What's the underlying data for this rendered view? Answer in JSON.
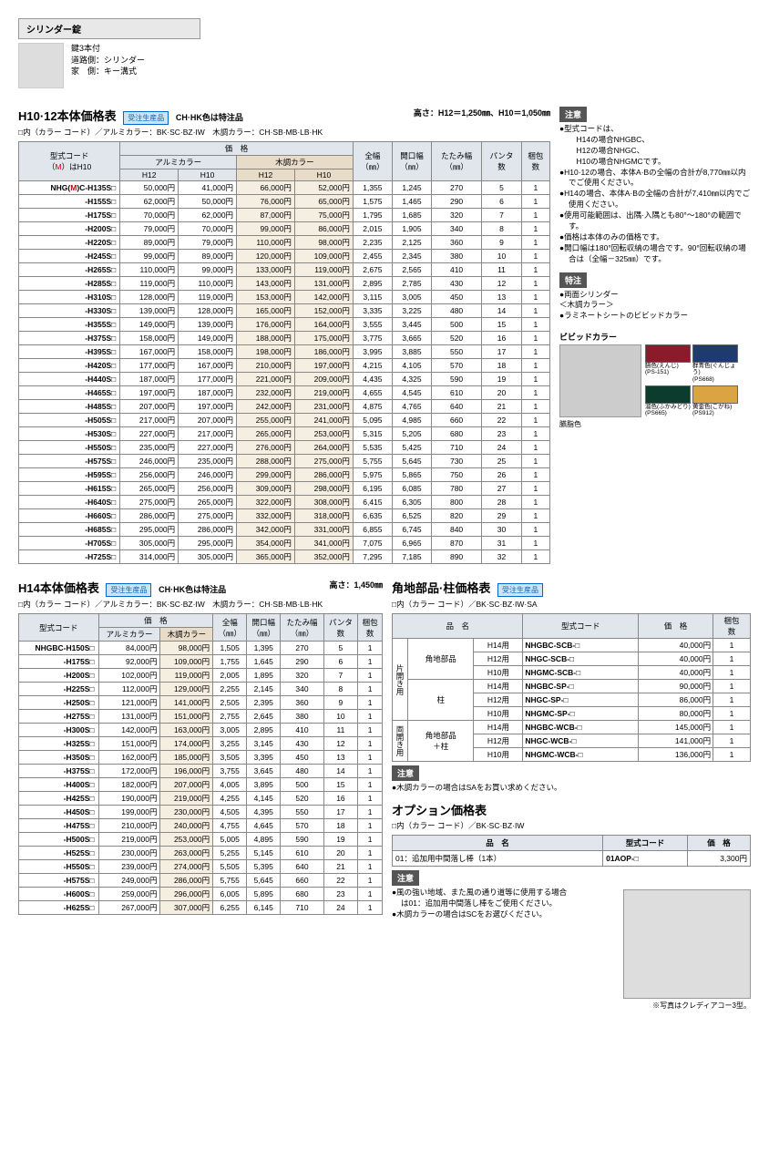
{
  "lock": {
    "header": "シリンダー錠",
    "lines": [
      "鍵3本付",
      "道路側：シリンダー",
      "家　側：キー溝式"
    ]
  },
  "table1": {
    "title": "H10·12本体価格表",
    "order_badge": "受注生産品",
    "subtitle": "CH·HK色は特注品",
    "height": "高さ：H12＝1,250㎜、H10＝1,050㎜",
    "colorcodes": "□内（カラー コード）／アルミカラー：BK·SC·BZ·IW　木調カラー：CH·SB·MB·LB·HK",
    "code_header": "型式コード\n（M）はH10",
    "headers": {
      "price": "価　格",
      "alum": "アルミカラー",
      "wood": "木調カラー",
      "fullw": "全幅\n（㎜）",
      "openw": "開口幅\n（㎜）",
      "foldw": "たたみ幅\n（㎜）",
      "panta": "パンタ\n数",
      "pkg": "梱包\n数",
      "h12": "H12",
      "h10": "H10"
    },
    "rows": [
      {
        "code": "NHG(M)C-H135S□",
        "p": [
          "50,000円",
          "41,000円",
          "66,000円",
          "52,000円"
        ],
        "v": [
          "1,355",
          "1,245",
          "270",
          "5",
          "1"
        ]
      },
      {
        "code": "-H155S□",
        "p": [
          "62,000円",
          "50,000円",
          "76,000円",
          "65,000円"
        ],
        "v": [
          "1,575",
          "1,465",
          "290",
          "6",
          "1"
        ]
      },
      {
        "code": "-H175S□",
        "p": [
          "70,000円",
          "62,000円",
          "87,000円",
          "75,000円"
        ],
        "v": [
          "1,795",
          "1,685",
          "320",
          "7",
          "1"
        ]
      },
      {
        "code": "-H200S□",
        "p": [
          "79,000円",
          "70,000円",
          "99,000円",
          "86,000円"
        ],
        "v": [
          "2,015",
          "1,905",
          "340",
          "8",
          "1"
        ]
      },
      {
        "code": "-H220S□",
        "p": [
          "89,000円",
          "79,000円",
          "110,000円",
          "98,000円"
        ],
        "v": [
          "2,235",
          "2,125",
          "360",
          "9",
          "1"
        ]
      },
      {
        "code": "-H245S□",
        "p": [
          "99,000円",
          "89,000円",
          "120,000円",
          "109,000円"
        ],
        "v": [
          "2,455",
          "2,345",
          "380",
          "10",
          "1"
        ]
      },
      {
        "code": "-H265S□",
        "p": [
          "110,000円",
          "99,000円",
          "133,000円",
          "119,000円"
        ],
        "v": [
          "2,675",
          "2,565",
          "410",
          "11",
          "1"
        ]
      },
      {
        "code": "-H285S□",
        "p": [
          "119,000円",
          "110,000円",
          "143,000円",
          "131,000円"
        ],
        "v": [
          "2,895",
          "2,785",
          "430",
          "12",
          "1"
        ]
      },
      {
        "code": "-H310S□",
        "p": [
          "128,000円",
          "119,000円",
          "153,000円",
          "142,000円"
        ],
        "v": [
          "3,115",
          "3,005",
          "450",
          "13",
          "1"
        ]
      },
      {
        "code": "-H330S□",
        "p": [
          "139,000円",
          "128,000円",
          "165,000円",
          "152,000円"
        ],
        "v": [
          "3,335",
          "3,225",
          "480",
          "14",
          "1"
        ]
      },
      {
        "code": "-H355S□",
        "p": [
          "149,000円",
          "139,000円",
          "176,000円",
          "164,000円"
        ],
        "v": [
          "3,555",
          "3,445",
          "500",
          "15",
          "1"
        ]
      },
      {
        "code": "-H375S□",
        "p": [
          "158,000円",
          "149,000円",
          "188,000円",
          "175,000円"
        ],
        "v": [
          "3,775",
          "3,665",
          "520",
          "16",
          "1"
        ]
      },
      {
        "code": "-H395S□",
        "p": [
          "167,000円",
          "158,000円",
          "198,000円",
          "186,000円"
        ],
        "v": [
          "3,995",
          "3,885",
          "550",
          "17",
          "1"
        ]
      },
      {
        "code": "-H420S□",
        "p": [
          "177,000円",
          "167,000円",
          "210,000円",
          "197,000円"
        ],
        "v": [
          "4,215",
          "4,105",
          "570",
          "18",
          "1"
        ]
      },
      {
        "code": "-H440S□",
        "p": [
          "187,000円",
          "177,000円",
          "221,000円",
          "209,000円"
        ],
        "v": [
          "4,435",
          "4,325",
          "590",
          "19",
          "1"
        ]
      },
      {
        "code": "-H465S□",
        "p": [
          "197,000円",
          "187,000円",
          "232,000円",
          "219,000円"
        ],
        "v": [
          "4,655",
          "4,545",
          "610",
          "20",
          "1"
        ]
      },
      {
        "code": "-H485S□",
        "p": [
          "207,000円",
          "197,000円",
          "242,000円",
          "231,000円"
        ],
        "v": [
          "4,875",
          "4,765",
          "640",
          "21",
          "1"
        ]
      },
      {
        "code": "-H505S□",
        "p": [
          "217,000円",
          "207,000円",
          "255,000円",
          "241,000円"
        ],
        "v": [
          "5,095",
          "4,985",
          "660",
          "22",
          "1"
        ]
      },
      {
        "code": "-H530S□",
        "p": [
          "227,000円",
          "217,000円",
          "265,000円",
          "253,000円"
        ],
        "v": [
          "5,315",
          "5,205",
          "680",
          "23",
          "1"
        ]
      },
      {
        "code": "-H550S□",
        "p": [
          "235,000円",
          "227,000円",
          "276,000円",
          "264,000円"
        ],
        "v": [
          "5,535",
          "5,425",
          "710",
          "24",
          "1"
        ]
      },
      {
        "code": "-H575S□",
        "p": [
          "246,000円",
          "235,000円",
          "288,000円",
          "275,000円"
        ],
        "v": [
          "5,755",
          "5,645",
          "730",
          "25",
          "1"
        ]
      },
      {
        "code": "-H595S□",
        "p": [
          "256,000円",
          "246,000円",
          "299,000円",
          "286,000円"
        ],
        "v": [
          "5,975",
          "5,865",
          "750",
          "26",
          "1"
        ]
      },
      {
        "code": "-H615S□",
        "p": [
          "265,000円",
          "256,000円",
          "309,000円",
          "298,000円"
        ],
        "v": [
          "6,195",
          "6,085",
          "780",
          "27",
          "1"
        ]
      },
      {
        "code": "-H640S□",
        "p": [
          "275,000円",
          "265,000円",
          "322,000円",
          "308,000円"
        ],
        "v": [
          "6,415",
          "6,305",
          "800",
          "28",
          "1"
        ]
      },
      {
        "code": "-H660S□",
        "p": [
          "286,000円",
          "275,000円",
          "332,000円",
          "318,000円"
        ],
        "v": [
          "6,635",
          "6,525",
          "820",
          "29",
          "1"
        ]
      },
      {
        "code": "-H685S□",
        "p": [
          "295,000円",
          "286,000円",
          "342,000円",
          "331,000円"
        ],
        "v": [
          "6,855",
          "6,745",
          "840",
          "30",
          "1"
        ]
      },
      {
        "code": "-H705S□",
        "p": [
          "305,000円",
          "295,000円",
          "354,000円",
          "341,000円"
        ],
        "v": [
          "7,075",
          "6,965",
          "870",
          "31",
          "1"
        ]
      },
      {
        "code": "-H725S□",
        "p": [
          "314,000円",
          "305,000円",
          "365,000円",
          "352,000円"
        ],
        "v": [
          "7,295",
          "7,185",
          "890",
          "32",
          "1"
        ]
      }
    ]
  },
  "side_notes": {
    "attention_header": "注意",
    "attention": [
      "●型式コードは、\n　H14の場合NHGBC、\n　H12の場合NHGC、\n　H10の場合NHGMCです。",
      "●H10·12の場合、本体A·Bの全幅の合計が8,770㎜以内でご使用ください。",
      "●H14の場合、本体A·Bの全幅の合計が7,410㎜以内でご使用ください。",
      "●使用可能範囲は、出隅·入隅とも80°～180°の範囲です。",
      "●価格は本体のみの価格です。",
      "●開口幅は180°回転収納の場合です。90°回転収納の場合は（全幅－325㎜）です。"
    ],
    "feature_header": "特注",
    "features": [
      "●両面シリンダー",
      "＜木調カラー＞",
      "●ラミネートシートのビビッドカラー"
    ],
    "vivid_title": "ビビッドカラー",
    "swatches": [
      {
        "label": "臙色(えんじ)\n(PS-151)",
        "color": "#8b1a2b"
      },
      {
        "label": "群青色(ぐんじょう)\n(PS668)",
        "color": "#1e3a6e"
      },
      {
        "label": "溜色(ふかみどり)\n(PS665)",
        "color": "#0d3b2e"
      },
      {
        "label": "黄金色(こがね)\n(PS912)",
        "color": "#d9a441"
      }
    ],
    "resin_label": "臙脂色"
  },
  "table2": {
    "title": "H14本体価格表",
    "order_badge": "受注生産品",
    "subtitle": "CH·HK色は特注品",
    "height": "高さ：1,450㎜",
    "colorcodes": "□内（カラー コード）／アルミカラー：BK·SC·BZ·IW　木調カラー：CH·SB·MB·LB·HK",
    "code_header": "型式コード",
    "headers": {
      "price": "価　格",
      "alum": "アルミカラー",
      "wood": "木調カラー",
      "fullw": "全幅\n（㎜）",
      "openw": "開口幅\n（㎜）",
      "foldw": "たたみ幅\n（㎜）",
      "panta": "パンタ\n数",
      "pkg": "梱包\n数"
    },
    "rows": [
      {
        "code": "NHGBC-H150S□",
        "p": [
          "84,000円",
          "98,000円"
        ],
        "v": [
          "1,505",
          "1,395",
          "270",
          "5",
          "1"
        ]
      },
      {
        "code": "-H175S□",
        "p": [
          "92,000円",
          "109,000円"
        ],
        "v": [
          "1,755",
          "1,645",
          "290",
          "6",
          "1"
        ]
      },
      {
        "code": "-H200S□",
        "p": [
          "102,000円",
          "119,000円"
        ],
        "v": [
          "2,005",
          "1,895",
          "320",
          "7",
          "1"
        ]
      },
      {
        "code": "-H225S□",
        "p": [
          "112,000円",
          "129,000円"
        ],
        "v": [
          "2,255",
          "2,145",
          "340",
          "8",
          "1"
        ]
      },
      {
        "code": "-H250S□",
        "p": [
          "121,000円",
          "141,000円"
        ],
        "v": [
          "2,505",
          "2,395",
          "360",
          "9",
          "1"
        ]
      },
      {
        "code": "-H275S□",
        "p": [
          "131,000円",
          "151,000円"
        ],
        "v": [
          "2,755",
          "2,645",
          "380",
          "10",
          "1"
        ]
      },
      {
        "code": "-H300S□",
        "p": [
          "142,000円",
          "163,000円"
        ],
        "v": [
          "3,005",
          "2,895",
          "410",
          "11",
          "1"
        ]
      },
      {
        "code": "-H325S□",
        "p": [
          "151,000円",
          "174,000円"
        ],
        "v": [
          "3,255",
          "3,145",
          "430",
          "12",
          "1"
        ]
      },
      {
        "code": "-H350S□",
        "p": [
          "162,000円",
          "185,000円"
        ],
        "v": [
          "3,505",
          "3,395",
          "450",
          "13",
          "1"
        ]
      },
      {
        "code": "-H375S□",
        "p": [
          "172,000円",
          "196,000円"
        ],
        "v": [
          "3,755",
          "3,645",
          "480",
          "14",
          "1"
        ]
      },
      {
        "code": "-H400S□",
        "p": [
          "182,000円",
          "207,000円"
        ],
        "v": [
          "4,005",
          "3,895",
          "500",
          "15",
          "1"
        ]
      },
      {
        "code": "-H425S□",
        "p": [
          "190,000円",
          "219,000円"
        ],
        "v": [
          "4,255",
          "4,145",
          "520",
          "16",
          "1"
        ]
      },
      {
        "code": "-H450S□",
        "p": [
          "199,000円",
          "230,000円"
        ],
        "v": [
          "4,505",
          "4,395",
          "550",
          "17",
          "1"
        ]
      },
      {
        "code": "-H475S□",
        "p": [
          "210,000円",
          "240,000円"
        ],
        "v": [
          "4,755",
          "4,645",
          "570",
          "18",
          "1"
        ]
      },
      {
        "code": "-H500S□",
        "p": [
          "219,000円",
          "253,000円"
        ],
        "v": [
          "5,005",
          "4,895",
          "590",
          "19",
          "1"
        ]
      },
      {
        "code": "-H525S□",
        "p": [
          "230,000円",
          "263,000円"
        ],
        "v": [
          "5,255",
          "5,145",
          "610",
          "20",
          "1"
        ]
      },
      {
        "code": "-H550S□",
        "p": [
          "239,000円",
          "274,000円"
        ],
        "v": [
          "5,505",
          "5,395",
          "640",
          "21",
          "1"
        ]
      },
      {
        "code": "-H575S□",
        "p": [
          "249,000円",
          "286,000円"
        ],
        "v": [
          "5,755",
          "5,645",
          "660",
          "22",
          "1"
        ]
      },
      {
        "code": "-H600S□",
        "p": [
          "259,000円",
          "296,000円"
        ],
        "v": [
          "6,005",
          "5,895",
          "680",
          "23",
          "1"
        ]
      },
      {
        "code": "-H625S□",
        "p": [
          "267,000円",
          "307,000円"
        ],
        "v": [
          "6,255",
          "6,145",
          "710",
          "24",
          "1"
        ]
      }
    ]
  },
  "corner": {
    "title": "角地部品·柱価格表",
    "order_badge": "受注生産品",
    "colorcodes": "□内（カラー コード）／BK·SC·BZ·IW·SA",
    "headers": {
      "name": "品　名",
      "code": "型式コード",
      "price": "価　格",
      "pkg": "梱包\n数"
    },
    "groups": [
      {
        "side": "片開き用",
        "rows": [
          {
            "sub": "角地部品",
            "h": "H14用",
            "code": "NHGBC-SCB-□",
            "price": "40,000円",
            "pkg": "1"
          },
          {
            "sub": "",
            "h": "H12用",
            "code": "NHGC-SCB-□",
            "price": "40,000円",
            "pkg": "1"
          },
          {
            "sub": "",
            "h": "H10用",
            "code": "NHGMC-SCB-□",
            "price": "40,000円",
            "pkg": "1"
          },
          {
            "sub": "柱",
            "h": "H14用",
            "code": "NHGBC-SP-□",
            "price": "90,000円",
            "pkg": "1"
          },
          {
            "sub": "",
            "h": "H12用",
            "code": "NHGC-SP-□",
            "price": "86,000円",
            "pkg": "1"
          },
          {
            "sub": "",
            "h": "H10用",
            "code": "NHGMC-SP-□",
            "price": "80,000円",
            "pkg": "1"
          }
        ]
      },
      {
        "side": "両開き用",
        "rows": [
          {
            "sub": "角地部品\n＋柱",
            "h": "H14用",
            "code": "NHGBC-WCB-□",
            "price": "145,000円",
            "pkg": "1"
          },
          {
            "sub": "",
            "h": "H12用",
            "code": "NHGC-WCB-□",
            "price": "141,000円",
            "pkg": "1"
          },
          {
            "sub": "",
            "h": "H10用",
            "code": "NHGMC-WCB-□",
            "price": "136,000円",
            "pkg": "1"
          }
        ]
      }
    ],
    "note_header": "注意",
    "notes": [
      "●木調カラーの場合はSAをお買い求めください。"
    ]
  },
  "options": {
    "title": "オプション価格表",
    "colorcodes": "□内（カラー コード）／BK·SC·BZ·IW",
    "headers": {
      "name": "品　名",
      "code": "型式コード",
      "price": "価　格"
    },
    "row": {
      "name": "01：追加用中間落し棒（1本）",
      "code": "01AOP-□",
      "price": "3,300円"
    },
    "note_header": "注意",
    "notes": [
      "●風の強い地域、また風の通り道等に使用する場合は01：追加用中間落し棒をご使用ください。",
      "●木調カラーの場合はSCをお選びください。"
    ],
    "caption": "※写真はクレディアコー3型。"
  }
}
